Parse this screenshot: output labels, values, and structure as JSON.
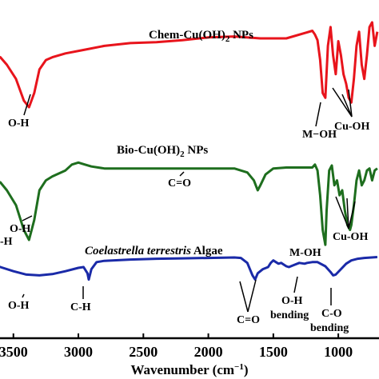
{
  "chart_data": {
    "type": "line",
    "xlabel": "Wavenumber (cm⁻¹)",
    "ylabel": "",
    "xlim": [
      3800,
      650
    ],
    "x_reversed": true,
    "x_ticks": [
      "3500",
      "3000",
      "2500",
      "2000",
      "1500",
      "1000"
    ],
    "x_tick_values": [
      3500,
      3000,
      2500,
      2000,
      1500,
      1000
    ],
    "grid": false,
    "series": [
      {
        "name": "Chem-Cu(OH)₂ NPs",
        "color": "#e8141c",
        "points": [
          [
            3800,
            0.62
          ],
          [
            3700,
            0.63
          ],
          [
            3600,
            0.58
          ],
          [
            3550,
            0.5
          ],
          [
            3480,
            0.35
          ],
          [
            3420,
            0.12
          ],
          [
            3380,
            0.05
          ],
          [
            3340,
            0.2
          ],
          [
            3300,
            0.45
          ],
          [
            3250,
            0.55
          ],
          [
            3200,
            0.58
          ],
          [
            3100,
            0.62
          ],
          [
            2950,
            0.66
          ],
          [
            2800,
            0.7
          ],
          [
            2600,
            0.73
          ],
          [
            2400,
            0.74
          ],
          [
            2200,
            0.76
          ],
          [
            2000,
            0.79
          ],
          [
            1800,
            0.8
          ],
          [
            1600,
            0.78
          ],
          [
            1400,
            0.78
          ],
          [
            1250,
            0.84
          ],
          [
            1200,
            0.86
          ],
          [
            1180,
            0.82
          ],
          [
            1160,
            0.76
          ],
          [
            1140,
            0.55
          ],
          [
            1120,
            0.2
          ],
          [
            1100,
            0.15
          ],
          [
            1080,
            0.7
          ],
          [
            1060,
            0.9
          ],
          [
            1040,
            0.6
          ],
          [
            1020,
            0.4
          ],
          [
            1000,
            0.75
          ],
          [
            980,
            0.6
          ],
          [
            960,
            0.4
          ],
          [
            940,
            0.3
          ],
          [
            920,
            0.15
          ],
          [
            900,
            0.1
          ],
          [
            880,
            0.35
          ],
          [
            860,
            0.7
          ],
          [
            840,
            0.85
          ],
          [
            820,
            0.5
          ],
          [
            800,
            0.35
          ],
          [
            780,
            0.6
          ],
          [
            760,
            0.9
          ],
          [
            740,
            0.95
          ],
          [
            720,
            0.7
          ],
          [
            700,
            0.85
          ]
        ]
      },
      {
        "name": "Bio-Cu(OH)₂ NPs",
        "color": "#1e6e1e",
        "points": [
          [
            3800,
            0.6
          ],
          [
            3700,
            0.62
          ],
          [
            3600,
            0.58
          ],
          [
            3550,
            0.5
          ],
          [
            3480,
            0.35
          ],
          [
            3420,
            0.1
          ],
          [
            3380,
            0.0
          ],
          [
            3340,
            0.2
          ],
          [
            3300,
            0.5
          ],
          [
            3250,
            0.6
          ],
          [
            3200,
            0.64
          ],
          [
            3100,
            0.7
          ],
          [
            3050,
            0.76
          ],
          [
            3000,
            0.78
          ],
          [
            2950,
            0.76
          ],
          [
            2900,
            0.74
          ],
          [
            2800,
            0.72
          ],
          [
            2600,
            0.72
          ],
          [
            2400,
            0.72
          ],
          [
            2200,
            0.72
          ],
          [
            2000,
            0.72
          ],
          [
            1800,
            0.72
          ],
          [
            1700,
            0.68
          ],
          [
            1650,
            0.6
          ],
          [
            1620,
            0.5
          ],
          [
            1600,
            0.55
          ],
          [
            1560,
            0.66
          ],
          [
            1500,
            0.72
          ],
          [
            1400,
            0.73
          ],
          [
            1300,
            0.73
          ],
          [
            1200,
            0.73
          ],
          [
            1180,
            0.76
          ],
          [
            1160,
            0.7
          ],
          [
            1140,
            0.45
          ],
          [
            1120,
            0.1
          ],
          [
            1100,
            -0.05
          ],
          [
            1090,
            0.3
          ],
          [
            1070,
            0.7
          ],
          [
            1050,
            0.75
          ],
          [
            1030,
            0.55
          ],
          [
            1010,
            0.6
          ],
          [
            990,
            0.45
          ],
          [
            970,
            0.5
          ],
          [
            950,
            0.3
          ],
          [
            930,
            0.15
          ],
          [
            910,
            0.1
          ],
          [
            900,
            0.15
          ],
          [
            880,
            0.35
          ],
          [
            860,
            0.6
          ],
          [
            840,
            0.7
          ],
          [
            820,
            0.55
          ],
          [
            800,
            0.6
          ],
          [
            780,
            0.7
          ],
          [
            760,
            0.72
          ],
          [
            740,
            0.6
          ],
          [
            720,
            0.7
          ],
          [
            700,
            0.72
          ]
        ]
      },
      {
        "name": "Coelastrella terrestris Algae",
        "color": "#1a2aa8",
        "points": [
          [
            3800,
            0.62
          ],
          [
            3700,
            0.6
          ],
          [
            3600,
            0.5
          ],
          [
            3500,
            0.4
          ],
          [
            3400,
            0.32
          ],
          [
            3300,
            0.3
          ],
          [
            3200,
            0.33
          ],
          [
            3100,
            0.4
          ],
          [
            3000,
            0.48
          ],
          [
            2960,
            0.5
          ],
          [
            2930,
            0.35
          ],
          [
            2920,
            0.2
          ],
          [
            2900,
            0.45
          ],
          [
            2860,
            0.62
          ],
          [
            2800,
            0.65
          ],
          [
            2600,
            0.68
          ],
          [
            2400,
            0.7
          ],
          [
            2200,
            0.71
          ],
          [
            2000,
            0.72
          ],
          [
            1800,
            0.73
          ],
          [
            1750,
            0.72
          ],
          [
            1700,
            0.6
          ],
          [
            1660,
            0.3
          ],
          [
            1640,
            0.2
          ],
          [
            1620,
            0.35
          ],
          [
            1580,
            0.45
          ],
          [
            1540,
            0.5
          ],
          [
            1520,
            0.6
          ],
          [
            1500,
            0.66
          ],
          [
            1480,
            0.62
          ],
          [
            1460,
            0.58
          ],
          [
            1440,
            0.6
          ],
          [
            1420,
            0.56
          ],
          [
            1400,
            0.52
          ],
          [
            1380,
            0.5
          ],
          [
            1340,
            0.55
          ],
          [
            1300,
            0.6
          ],
          [
            1260,
            0.58
          ],
          [
            1240,
            0.6
          ],
          [
            1200,
            0.62
          ],
          [
            1160,
            0.62
          ],
          [
            1100,
            0.52
          ],
          [
            1060,
            0.38
          ],
          [
            1040,
            0.3
          ],
          [
            1020,
            0.32
          ],
          [
            980,
            0.45
          ],
          [
            940,
            0.58
          ],
          [
            900,
            0.66
          ],
          [
            850,
            0.7
          ],
          [
            800,
            0.72
          ],
          [
            700,
            0.74
          ]
        ]
      }
    ],
    "annotations": [
      {
        "text": "O-H",
        "series": 0,
        "x": 3400
      },
      {
        "text": "M−OH",
        "series": 0,
        "x": 1120
      },
      {
        "text": "Cu-OH",
        "series": 0,
        "x": 900
      },
      {
        "text": "C=O",
        "series": 1,
        "x": 1620
      },
      {
        "text": "O-H",
        "series": 1,
        "x": 3400
      },
      {
        "text": "-H",
        "series": 1,
        "x": 3700
      },
      {
        "text": "Cu-OH",
        "series": 1,
        "x": 910
      },
      {
        "text": "M-OH",
        "series": 1,
        "x": 1100
      },
      {
        "text": "O-H",
        "series": 2,
        "x": 3400
      },
      {
        "text": "C-H",
        "series": 2,
        "x": 2920
      },
      {
        "text": "C=O",
        "series": 2,
        "x": 1640
      },
      {
        "text": "O-H bending",
        "series": 2,
        "x": 1400
      },
      {
        "text": "C-O bending",
        "series": 2,
        "x": 1040
      }
    ]
  },
  "labels": {
    "series0": "Chem-Cu(OH)",
    "series0_sub": "2",
    "series0_tail": " NPs",
    "series1": "Bio-Cu(OH)",
    "series1_sub": "2",
    "series1_tail": " NPs",
    "series2_italic": "Coelastrella terrestris",
    "series2_tail": " Algae",
    "xaxis_main": "Wavenumber (cm",
    "xaxis_sup": "−1",
    "xaxis_tail": ")",
    "a_oh_chem": "O-H",
    "a_moh_chem": "M−OH",
    "a_cuoh_chem": "Cu-OH",
    "a_co_bio": "C=O",
    "a_oh_bio": "O-H",
    "a_h_bio": "-H",
    "a_cuoh_bio": "Cu-OH",
    "a_moh_bio": "M-OH",
    "a_oh_alg": "O-H",
    "a_ch_alg": "C-H",
    "a_co_alg": "C=O",
    "a_ohb_1": "O-H",
    "a_ohb_2": "bending",
    "a_cob_1": "C-O",
    "a_cob_2": "bending"
  }
}
